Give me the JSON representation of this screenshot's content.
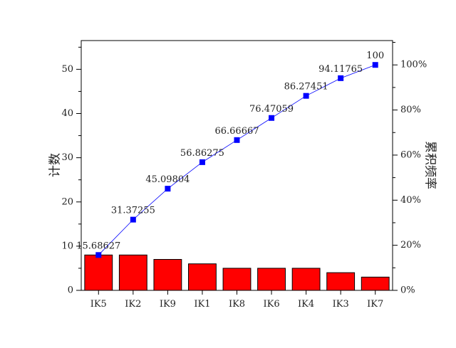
{
  "chart_data": {
    "type": "bar",
    "categories": [
      "IK5",
      "IK2",
      "IK9",
      "IK1",
      "IK8",
      "IK6",
      "IK4",
      "IK3",
      "IK7"
    ],
    "series": [
      {
        "values": [
          8,
          8,
          7,
          6,
          5,
          5,
          5,
          4,
          3
        ],
        "color": "#ff0000",
        "type": "bar",
        "axis": "left"
      },
      {
        "values": [
          15.68627,
          31.37255,
          45.09804,
          56.86275,
          66.66667,
          76.47059,
          86.27451,
          94.11765,
          100
        ],
        "color": "#0000ff",
        "type": "line",
        "axis": "right"
      }
    ],
    "point_labels": [
      "15.68627",
      "31.37255",
      "45.09804",
      "56.86275",
      "66.66667",
      "76.47059",
      "86.27451",
      "94.11765",
      "100"
    ],
    "ylabel": "计数",
    "y2label": "累积频率",
    "ylim": [
      0,
      56.5
    ],
    "y_ticks": [
      "0",
      "10",
      "20",
      "30",
      "40",
      "50"
    ],
    "y2lim": [
      0,
      110.8
    ],
    "y2_ticks": [
      "0%",
      "20%",
      "40%",
      "60%",
      "80%",
      "100%"
    ],
    "grid": false,
    "legend": "none"
  }
}
